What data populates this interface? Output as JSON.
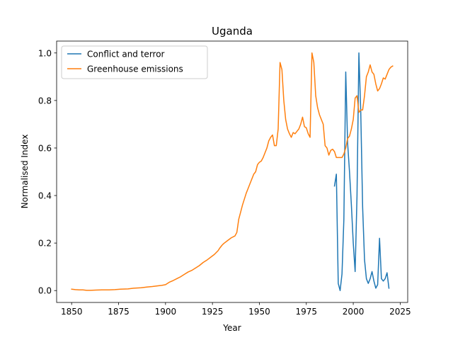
{
  "chart_data": {
    "type": "line",
    "title": "Uganda",
    "xlabel": "Year",
    "ylabel": "Normalised Index",
    "xlim": [
      1842,
      2029
    ],
    "ylim": [
      -0.05,
      1.05
    ],
    "xticks": [
      1850,
      1875,
      1900,
      1925,
      1950,
      1975,
      2000,
      2025
    ],
    "yticks": [
      0.0,
      0.2,
      0.4,
      0.6,
      0.8,
      1.0
    ],
    "ytick_labels": [
      "0.0",
      "0.2",
      "0.4",
      "0.6",
      "0.8",
      "1.0"
    ],
    "grid": false,
    "legend_position": "top-left",
    "series": [
      {
        "name": "Conflict and terror",
        "color": "#1f77b4",
        "points": [
          [
            1990,
            0.44
          ],
          [
            1991,
            0.49
          ],
          [
            1992,
            0.03
          ],
          [
            1993,
            0.0
          ],
          [
            1994,
            0.07
          ],
          [
            1995,
            0.3
          ],
          [
            1996,
            0.92
          ],
          [
            1997,
            0.62
          ],
          [
            1998,
            0.5
          ],
          [
            1999,
            0.36
          ],
          [
            2000,
            0.2
          ],
          [
            2001,
            0.08
          ],
          [
            2002,
            0.4
          ],
          [
            2003,
            1.0
          ],
          [
            2004,
            0.75
          ],
          [
            2005,
            0.35
          ],
          [
            2006,
            0.13
          ],
          [
            2007,
            0.05
          ],
          [
            2008,
            0.03
          ],
          [
            2009,
            0.05
          ],
          [
            2010,
            0.08
          ],
          [
            2011,
            0.04
          ],
          [
            2012,
            0.01
          ],
          [
            2013,
            0.025
          ],
          [
            2014,
            0.22
          ],
          [
            2015,
            0.05
          ],
          [
            2016,
            0.04
          ],
          [
            2017,
            0.05
          ],
          [
            2018,
            0.075
          ],
          [
            2019,
            0.01
          ]
        ]
      },
      {
        "name": "Greenhouse emissions",
        "color": "#ff7f0e",
        "points": [
          [
            1850,
            0.006
          ],
          [
            1852,
            0.004
          ],
          [
            1854,
            0.003
          ],
          [
            1856,
            0.003
          ],
          [
            1858,
            0.001
          ],
          [
            1860,
            0.001
          ],
          [
            1863,
            0.002
          ],
          [
            1866,
            0.003
          ],
          [
            1870,
            0.003
          ],
          [
            1873,
            0.004
          ],
          [
            1876,
            0.006
          ],
          [
            1880,
            0.007
          ],
          [
            1883,
            0.01
          ],
          [
            1887,
            0.012
          ],
          [
            1890,
            0.015
          ],
          [
            1893,
            0.017
          ],
          [
            1896,
            0.02
          ],
          [
            1898,
            0.022
          ],
          [
            1900,
            0.025
          ],
          [
            1902,
            0.035
          ],
          [
            1904,
            0.042
          ],
          [
            1906,
            0.05
          ],
          [
            1908,
            0.058
          ],
          [
            1910,
            0.068
          ],
          [
            1912,
            0.078
          ],
          [
            1914,
            0.085
          ],
          [
            1916,
            0.095
          ],
          [
            1918,
            0.105
          ],
          [
            1920,
            0.118
          ],
          [
            1922,
            0.128
          ],
          [
            1924,
            0.14
          ],
          [
            1926,
            0.152
          ],
          [
            1928,
            0.168
          ],
          [
            1929,
            0.18
          ],
          [
            1930,
            0.19
          ],
          [
            1931,
            0.198
          ],
          [
            1933,
            0.21
          ],
          [
            1935,
            0.222
          ],
          [
            1937,
            0.23
          ],
          [
            1938,
            0.245
          ],
          [
            1939,
            0.3
          ],
          [
            1940,
            0.33
          ],
          [
            1941,
            0.36
          ],
          [
            1942,
            0.385
          ],
          [
            1943,
            0.41
          ],
          [
            1944,
            0.43
          ],
          [
            1945,
            0.45
          ],
          [
            1946,
            0.47
          ],
          [
            1947,
            0.49
          ],
          [
            1948,
            0.5
          ],
          [
            1949,
            0.53
          ],
          [
            1950,
            0.54
          ],
          [
            1951,
            0.545
          ],
          [
            1952,
            0.56
          ],
          [
            1953,
            0.58
          ],
          [
            1954,
            0.6
          ],
          [
            1955,
            0.63
          ],
          [
            1956,
            0.645
          ],
          [
            1957,
            0.655
          ],
          [
            1958,
            0.61
          ],
          [
            1959,
            0.61
          ],
          [
            1960,
            0.68
          ],
          [
            1961,
            0.96
          ],
          [
            1962,
            0.93
          ],
          [
            1963,
            0.8
          ],
          [
            1964,
            0.72
          ],
          [
            1965,
            0.68
          ],
          [
            1966,
            0.66
          ],
          [
            1967,
            0.645
          ],
          [
            1968,
            0.665
          ],
          [
            1969,
            0.66
          ],
          [
            1970,
            0.67
          ],
          [
            1971,
            0.68
          ],
          [
            1972,
            0.7
          ],
          [
            1973,
            0.73
          ],
          [
            1974,
            0.69
          ],
          [
            1975,
            0.685
          ],
          [
            1976,
            0.66
          ],
          [
            1977,
            0.645
          ],
          [
            1978,
            1.0
          ],
          [
            1979,
            0.96
          ],
          [
            1980,
            0.82
          ],
          [
            1981,
            0.77
          ],
          [
            1982,
            0.74
          ],
          [
            1983,
            0.72
          ],
          [
            1984,
            0.7
          ],
          [
            1985,
            0.61
          ],
          [
            1986,
            0.6
          ],
          [
            1987,
            0.57
          ],
          [
            1988,
            0.59
          ],
          [
            1989,
            0.595
          ],
          [
            1990,
            0.585
          ],
          [
            1991,
            0.56
          ],
          [
            1992,
            0.56
          ],
          [
            1993,
            0.56
          ],
          [
            1994,
            0.56
          ],
          [
            1995,
            0.575
          ],
          [
            1996,
            0.6
          ],
          [
            1997,
            0.64
          ],
          [
            1998,
            0.65
          ],
          [
            1999,
            0.68
          ],
          [
            2000,
            0.72
          ],
          [
            2001,
            0.81
          ],
          [
            2002,
            0.82
          ],
          [
            2003,
            0.75
          ],
          [
            2004,
            0.76
          ],
          [
            2005,
            0.76
          ],
          [
            2006,
            0.82
          ],
          [
            2007,
            0.9
          ],
          [
            2008,
            0.92
          ],
          [
            2009,
            0.95
          ],
          [
            2010,
            0.92
          ],
          [
            2011,
            0.91
          ],
          [
            2012,
            0.87
          ],
          [
            2013,
            0.84
          ],
          [
            2014,
            0.85
          ],
          [
            2015,
            0.87
          ],
          [
            2016,
            0.895
          ],
          [
            2017,
            0.89
          ],
          [
            2018,
            0.91
          ],
          [
            2019,
            0.93
          ],
          [
            2020,
            0.94
          ],
          [
            2021,
            0.945
          ]
        ]
      }
    ]
  }
}
